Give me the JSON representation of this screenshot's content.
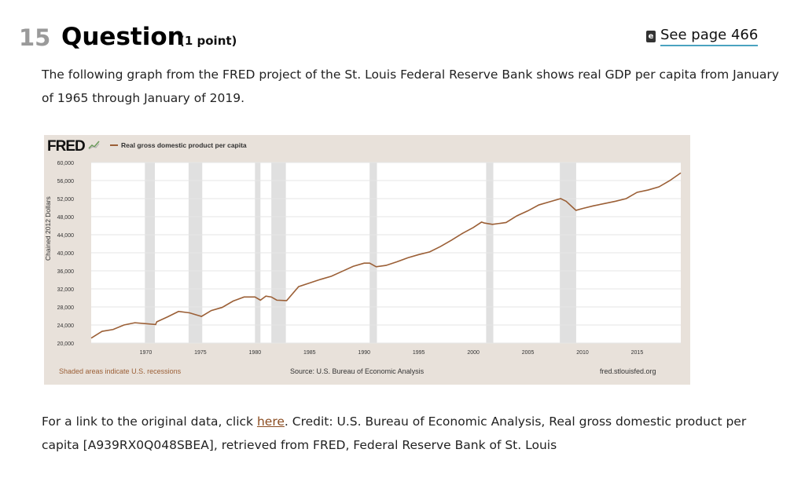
{
  "question": {
    "number": "15",
    "title": "Question",
    "points": "(1 point)",
    "see_page": "See page 466",
    "ebook_icon": "ebook-icon"
  },
  "intro": "The following graph from the FRED project of the St. Louis Federal Reserve Bank shows real GDP per capita from January of 1965 through January of 2019.",
  "footer": {
    "before": "For a link to the original data, click ",
    "link": "here",
    "after": ". Credit: U.S. Bureau of Economic Analysis, Real gross domestic product per capita [A939RX0Q048SBEA], retrieved from FRED, Federal Reserve Bank of St. Louis"
  },
  "chart_data": {
    "type": "line",
    "logo": "FRED",
    "series": [
      {
        "name": "Real gross domestic product per capita",
        "color": "#9b5f36",
        "x": [
          1965,
          1966,
          1967,
          1968,
          1969,
          1970,
          1970.9,
          1971,
          1972,
          1973,
          1974,
          1975.1,
          1976,
          1977,
          1978,
          1979,
          1980,
          1980.5,
          1981,
          1981.5,
          1982,
          1982.9,
          1984,
          1985,
          1986,
          1987,
          1988,
          1989,
          1990,
          1990.5,
          1991.1,
          1992,
          1993,
          1994,
          1995,
          1996,
          1997,
          1998,
          1999,
          2000,
          2000.75,
          2001,
          2001.75,
          2003,
          2004,
          2005,
          2006,
          2007,
          2008,
          2008.5,
          2009.4,
          2010,
          2011,
          2012,
          2013,
          2014,
          2015,
          2016,
          2017,
          2018,
          2019
        ],
        "y": [
          21100,
          22600,
          23000,
          24000,
          24500,
          24300,
          24100,
          24700,
          25800,
          27000,
          26700,
          25900,
          27200,
          27900,
          29300,
          30200,
          30200,
          29500,
          30400,
          30200,
          29500,
          29400,
          32500,
          33300,
          34100,
          34800,
          35900,
          37000,
          37700,
          37700,
          36900,
          37200,
          38000,
          38900,
          39600,
          40200,
          41400,
          42800,
          44300,
          45600,
          46800,
          46600,
          46300,
          46700,
          48200,
          49300,
          50600,
          51300,
          52000,
          51400,
          49400,
          49800,
          50400,
          50900,
          51400,
          52000,
          53400,
          53900,
          54600,
          56000,
          57700
        ]
      }
    ],
    "recessions": [
      [
        1969.92,
        1970.83
      ],
      [
        1973.92,
        1975.17
      ],
      [
        1980.0,
        1980.5
      ],
      [
        1981.5,
        1982.83
      ],
      [
        1990.5,
        1991.17
      ],
      [
        2001.17,
        2001.83
      ],
      [
        2007.92,
        2009.42
      ]
    ],
    "xlim": [
      1965,
      2019
    ],
    "ylim": [
      20000,
      60000
    ],
    "xticks": [
      "1970",
      "1975",
      "1980",
      "1985",
      "1990",
      "1995",
      "2000",
      "2005",
      "2010",
      "2015"
    ],
    "yticks": [
      "20,000",
      "24,000",
      "28,000",
      "32,000",
      "36,000",
      "40,000",
      "44,000",
      "48,000",
      "52,000",
      "56,000",
      "60,000"
    ],
    "ylabel": "Chained 2012 Dollars",
    "note": "Shaded areas indicate U.S. recessions",
    "source": "Source: U.S. Bureau of Economic Analysis",
    "site": "fred.stlouisfed.org",
    "grid": true,
    "legend": "top-left"
  }
}
